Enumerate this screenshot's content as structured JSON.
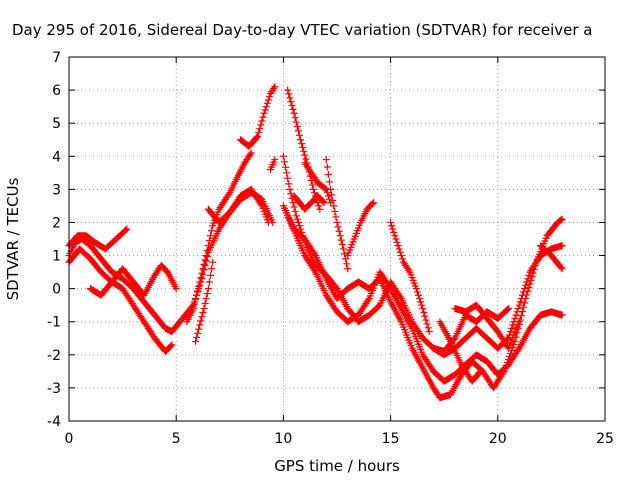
{
  "chart_data": {
    "type": "scatter",
    "title": "Day 295 of 2016, Sidereal Day-to-day VTEC variation (SDTVAR) for receiver a",
    "xlabel": "GPS time / hours",
    "ylabel": "SDTVAR / TECUs",
    "xlim": [
      0,
      25
    ],
    "ylim": [
      -4,
      7
    ],
    "xticks": [
      "0",
      "5",
      "10",
      "15",
      "20",
      "25"
    ],
    "yticks": [
      "-4",
      "-3",
      "-2",
      "-1",
      "0",
      "1",
      "2",
      "3",
      "4",
      "5",
      "6",
      "7"
    ],
    "grid": true,
    "marker": "plus",
    "color": "#ff0000",
    "series": [
      {
        "points": [
          [
            0,
            1.0
          ],
          [
            0.3,
            1.4
          ],
          [
            0.6,
            1.5
          ],
          [
            1.0,
            1.3
          ],
          [
            1.5,
            0.9
          ],
          [
            2.0,
            0.5
          ],
          [
            2.5,
            0.3
          ],
          [
            3.0,
            0.0
          ],
          [
            3.5,
            -0.4
          ],
          [
            4.0,
            -0.8
          ],
          [
            4.5,
            -1.2
          ],
          [
            4.8,
            -1.3
          ],
          [
            5.3,
            -0.9
          ],
          [
            5.8,
            -0.5
          ],
          [
            6.2,
            0.3
          ],
          [
            6.5,
            1.1
          ],
          [
            7.0,
            1.8
          ],
          [
            7.5,
            2.3
          ],
          [
            8.0,
            2.7
          ],
          [
            8.5,
            2.9
          ],
          [
            9.0,
            2.7
          ],
          [
            9.5,
            2.0
          ]
        ]
      },
      {
        "points": [
          [
            0,
            1.3
          ],
          [
            0.4,
            1.6
          ],
          [
            0.8,
            1.6
          ],
          [
            1.2,
            1.4
          ],
          [
            1.7,
            1.2
          ],
          [
            2.2,
            1.5
          ],
          [
            2.7,
            1.8
          ]
        ]
      },
      {
        "points": [
          [
            0,
            0.8
          ],
          [
            0.5,
            1.2
          ],
          [
            1.0,
            0.9
          ],
          [
            1.5,
            0.5
          ],
          [
            2.0,
            0.2
          ],
          [
            2.5,
            0.0
          ],
          [
            3.0,
            -0.5
          ],
          [
            3.5,
            -1.0
          ],
          [
            4.0,
            -1.5
          ],
          [
            4.5,
            -1.9
          ],
          [
            4.8,
            -1.7
          ]
        ]
      },
      {
        "points": [
          [
            1.0,
            0.0
          ],
          [
            1.5,
            -0.2
          ],
          [
            2.0,
            0.2
          ],
          [
            2.5,
            0.6
          ],
          [
            3.0,
            0.2
          ],
          [
            3.5,
            -0.2
          ],
          [
            4.0,
            0.4
          ],
          [
            4.3,
            0.7
          ],
          [
            4.6,
            0.5
          ],
          [
            5.0,
            0.0
          ]
        ]
      },
      {
        "points": [
          [
            5.5,
            -1.0
          ],
          [
            5.8,
            -0.6
          ],
          [
            6.1,
            0.2
          ],
          [
            6.4,
            1.0
          ],
          [
            6.7,
            1.9
          ],
          [
            7.0,
            2.4
          ],
          [
            7.5,
            2.9
          ],
          [
            7.8,
            3.3
          ],
          [
            8.2,
            3.8
          ],
          [
            8.5,
            4.1
          ]
        ]
      },
      {
        "points": [
          [
            6.5,
            2.4
          ],
          [
            7.0,
            2.0
          ],
          [
            7.5,
            2.3
          ],
          [
            8.0,
            2.8
          ],
          [
            8.5,
            3.0
          ],
          [
            9.0,
            2.5
          ],
          [
            9.3,
            2.0
          ]
        ]
      },
      {
        "points": [
          [
            8.0,
            4.5
          ],
          [
            8.4,
            4.3
          ],
          [
            8.8,
            4.6
          ],
          [
            9.1,
            5.3
          ],
          [
            9.4,
            5.9
          ],
          [
            9.6,
            6.1
          ]
        ]
      },
      {
        "points": [
          [
            5.9,
            -1.6
          ],
          [
            6.1,
            -1.1
          ],
          [
            6.3,
            -0.6
          ],
          [
            6.5,
            0.0
          ],
          [
            6.7,
            0.8
          ]
        ]
      },
      {
        "points": [
          [
            9.4,
            3.6
          ],
          [
            9.6,
            3.9
          ]
        ]
      },
      {
        "points": [
          [
            10.2,
            6.0
          ],
          [
            10.5,
            5.3
          ],
          [
            10.8,
            4.5
          ],
          [
            11.1,
            3.8
          ],
          [
            11.4,
            3.0
          ],
          [
            11.7,
            2.4
          ]
        ]
      },
      {
        "points": [
          [
            10.0,
            4.0
          ],
          [
            10.3,
            3.0
          ],
          [
            10.6,
            2.2
          ],
          [
            11.0,
            1.4
          ],
          [
            11.4,
            0.8
          ],
          [
            12.0,
            0.4
          ],
          [
            12.5,
            0.0
          ],
          [
            13.0,
            -0.6
          ],
          [
            13.5,
            -1.0
          ],
          [
            14.0,
            -0.8
          ],
          [
            14.5,
            -0.5
          ],
          [
            15.0,
            0.2
          ],
          [
            15.5,
            -0.3
          ],
          [
            16.0,
            -1.0
          ],
          [
            16.5,
            -1.5
          ],
          [
            17.0,
            -1.8
          ],
          [
            17.5,
            -2.0
          ],
          [
            18.0,
            -1.8
          ],
          [
            18.5,
            -1.5
          ],
          [
            19.0,
            -1.2
          ],
          [
            19.5,
            -1.5
          ],
          [
            20.0,
            -1.8
          ],
          [
            20.5,
            -1.5
          ],
          [
            21.0,
            -0.5
          ],
          [
            21.5,
            0.5
          ],
          [
            22.0,
            1.0
          ],
          [
            22.5,
            1.2
          ],
          [
            23.0,
            1.3
          ]
        ]
      },
      {
        "points": [
          [
            10.0,
            2.5
          ],
          [
            10.5,
            1.8
          ],
          [
            11.0,
            1.5
          ],
          [
            11.5,
            1.0
          ],
          [
            12.0,
            0.3
          ],
          [
            12.5,
            -0.3
          ],
          [
            13.0,
            0.0
          ],
          [
            13.5,
            0.2
          ],
          [
            14.0,
            0.0
          ],
          [
            14.5,
            0.3
          ],
          [
            15.0,
            -0.4
          ],
          [
            15.5,
            -1.0
          ],
          [
            16.0,
            -1.8
          ],
          [
            16.5,
            -2.4
          ],
          [
            17.0,
            -3.0
          ],
          [
            17.3,
            -3.3
          ],
          [
            17.8,
            -3.2
          ],
          [
            18.3,
            -2.6
          ],
          [
            18.8,
            -2.2
          ],
          [
            19.3,
            -2.5
          ],
          [
            19.8,
            -3.0
          ],
          [
            20.3,
            -2.5
          ],
          [
            20.8,
            -1.6
          ],
          [
            21.3,
            -0.3
          ],
          [
            21.8,
            0.8
          ],
          [
            22.3,
            1.6
          ],
          [
            22.8,
            2.0
          ],
          [
            23.0,
            2.1
          ]
        ]
      },
      {
        "points": [
          [
            10.2,
            2.2
          ],
          [
            10.6,
            1.6
          ],
          [
            11.0,
            1.0
          ],
          [
            11.5,
            0.5
          ],
          [
            12.0,
            -0.2
          ],
          [
            12.5,
            -0.7
          ],
          [
            13.0,
            -1.0
          ],
          [
            13.5,
            -0.8
          ],
          [
            14.0,
            -0.3
          ],
          [
            14.5,
            0.5
          ],
          [
            15.0,
            0.0
          ],
          [
            15.5,
            -0.6
          ],
          [
            16.0,
            -1.2
          ],
          [
            16.5,
            -2.0
          ],
          [
            17.0,
            -2.5
          ],
          [
            17.5,
            -2.8
          ],
          [
            18.0,
            -2.6
          ],
          [
            18.5,
            -2.3
          ],
          [
            19.0,
            -2.0
          ],
          [
            19.5,
            -2.2
          ],
          [
            20.0,
            -2.6
          ],
          [
            20.5,
            -2.3
          ],
          [
            21.0,
            -1.8
          ],
          [
            21.5,
            -1.2
          ],
          [
            22.0,
            -0.8
          ],
          [
            22.5,
            -0.7
          ],
          [
            23.0,
            -0.8
          ]
        ]
      },
      {
        "points": [
          [
            10.5,
            2.8
          ],
          [
            11.0,
            2.4
          ],
          [
            11.3,
            2.6
          ],
          [
            11.6,
            2.8
          ],
          [
            11.9,
            2.6
          ]
        ]
      },
      {
        "points": [
          [
            11.0,
            3.8
          ],
          [
            11.3,
            3.5
          ],
          [
            11.6,
            3.2
          ],
          [
            12.0,
            3.0
          ],
          [
            12.2,
            2.6
          ]
        ]
      },
      {
        "points": [
          [
            12.0,
            3.9
          ],
          [
            12.2,
            3.0
          ],
          [
            12.5,
            2.0
          ],
          [
            12.8,
            1.2
          ],
          [
            13.0,
            0.6
          ]
        ]
      },
      {
        "points": [
          [
            13.0,
            1.0
          ],
          [
            13.3,
            1.5
          ],
          [
            13.6,
            2.0
          ],
          [
            13.9,
            2.4
          ],
          [
            14.2,
            2.6
          ]
        ]
      },
      {
        "points": [
          [
            15.0,
            2.0
          ],
          [
            15.3,
            1.4
          ],
          [
            15.6,
            0.8
          ],
          [
            15.9,
            0.5
          ],
          [
            16.2,
            0.0
          ],
          [
            16.5,
            -0.6
          ],
          [
            16.8,
            -1.3
          ]
        ]
      },
      {
        "points": [
          [
            17.0,
            -1.8
          ],
          [
            17.5,
            -1.9
          ],
          [
            18.0,
            -1.5
          ],
          [
            18.5,
            -0.8
          ],
          [
            19.0,
            -1.0
          ],
          [
            19.5,
            -0.7
          ],
          [
            20.0,
            -0.9
          ],
          [
            20.5,
            -0.6
          ]
        ]
      },
      {
        "points": [
          [
            18.0,
            -0.6
          ],
          [
            18.5,
            -0.7
          ],
          [
            19.0,
            -0.5
          ],
          [
            19.5,
            -0.9
          ],
          [
            20.0,
            -1.3
          ],
          [
            20.5,
            -1.8
          ],
          [
            21.0,
            -1.0
          ]
        ]
      },
      {
        "points": [
          [
            22.0,
            1.3
          ],
          [
            22.5,
            1.0
          ],
          [
            23.0,
            0.6
          ]
        ]
      },
      {
        "points": [
          [
            17.3,
            -1.0
          ],
          [
            17.8,
            -1.6
          ],
          [
            18.3,
            -2.3
          ],
          [
            18.8,
            -2.8
          ],
          [
            19.2,
            -2.5
          ]
        ]
      }
    ]
  }
}
